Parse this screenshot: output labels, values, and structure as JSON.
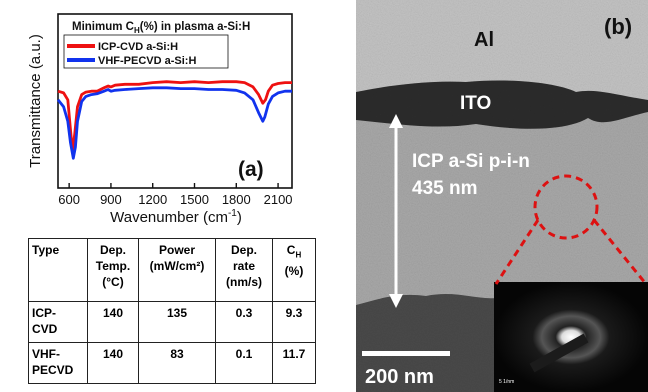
{
  "panel_a": {
    "inset_title": "Minimum C",
    "inset_title_sub": "H",
    "inset_title_rest": "(%) in plasma a-Si:H",
    "panel_label": "(a)",
    "ylabel": "Transmittance (a.u.)",
    "xlabel": "Wavenumber (cm",
    "xlabel_sup": "-1",
    "xlabel_end": ")",
    "colors": {
      "icp": "#ee1111",
      "vhf": "#1133ee"
    }
  },
  "chart_data": {
    "type": "line",
    "title": "Minimum CH(%) in plasma a-Si:H",
    "xlabel": "Wavenumber (cm-1)",
    "ylabel": "Transmittance (a.u.)",
    "xlim": [
      520,
      2200
    ],
    "x_ticks": [
      "600",
      "900",
      "1200",
      "1500",
      "1800",
      "2100"
    ],
    "y_range": [
      0,
      1
    ],
    "legend_position": "top-left",
    "series": [
      {
        "name": "ICP-CVD a-Si:H",
        "x": [
          520,
          560,
          590,
          610,
          625,
          640,
          660,
          690,
          720,
          760,
          800,
          850,
          880,
          900,
          930,
          1000,
          1100,
          1200,
          1300,
          1400,
          1500,
          1600,
          1700,
          1800,
          1860,
          1920,
          1960,
          1990,
          2010,
          2030,
          2060,
          2100,
          2150,
          2200
        ],
        "y": [
          0.8,
          0.78,
          0.7,
          0.35,
          0.1,
          0.3,
          0.62,
          0.76,
          0.79,
          0.8,
          0.8,
          0.84,
          0.86,
          0.85,
          0.87,
          0.88,
          0.88,
          0.9,
          0.91,
          0.9,
          0.91,
          0.9,
          0.91,
          0.91,
          0.9,
          0.85,
          0.76,
          0.66,
          0.7,
          0.8,
          0.87,
          0.89,
          0.9,
          0.9
        ]
      },
      {
        "name": "VHF-PECVD a-Si:H",
        "x": [
          520,
          560,
          590,
          610,
          630,
          645,
          660,
          690,
          720,
          760,
          800,
          850,
          880,
          900,
          930,
          1000,
          1100,
          1200,
          1300,
          1400,
          1500,
          1600,
          1700,
          1800,
          1860,
          1920,
          1960,
          1990,
          2005,
          2030,
          2060,
          2100,
          2150,
          2200
        ],
        "y": [
          0.7,
          0.62,
          0.45,
          0.2,
          0.02,
          0.15,
          0.45,
          0.68,
          0.74,
          0.76,
          0.77,
          0.8,
          0.82,
          0.8,
          0.81,
          0.82,
          0.83,
          0.84,
          0.84,
          0.83,
          0.83,
          0.82,
          0.82,
          0.81,
          0.78,
          0.7,
          0.55,
          0.45,
          0.5,
          0.65,
          0.74,
          0.78,
          0.8,
          0.8
        ]
      }
    ]
  },
  "table": {
    "headers": [
      [
        "Type"
      ],
      [
        "Dep.",
        "Temp.",
        "(°C)"
      ],
      [
        "Power",
        "(mW/cm²)"
      ],
      [
        "Dep.",
        "rate",
        "(nm/s)"
      ],
      [
        "C",
        "(%)"
      ]
    ],
    "ch_sub": "H",
    "rows": [
      {
        "type": [
          "ICP-",
          "CVD"
        ],
        "temp": "140",
        "power": "135",
        "rate": "0.3",
        "ch": "9.3"
      },
      {
        "type": [
          "VHF-",
          "PECVD"
        ],
        "temp": "140",
        "power": "83",
        "rate": "0.1",
        "ch": "11.7"
      }
    ]
  },
  "panel_b": {
    "label_al": "Al",
    "label_ito": "ITO",
    "label_layer": "ICP a-Si p-i-n",
    "label_thickness": "435 nm",
    "panel_label": "(b)",
    "scale_bar": "200 nm",
    "inset_scale": "5 1/nm",
    "colors": {
      "circle": "#dd1111",
      "arrow": "#ffffff"
    }
  }
}
